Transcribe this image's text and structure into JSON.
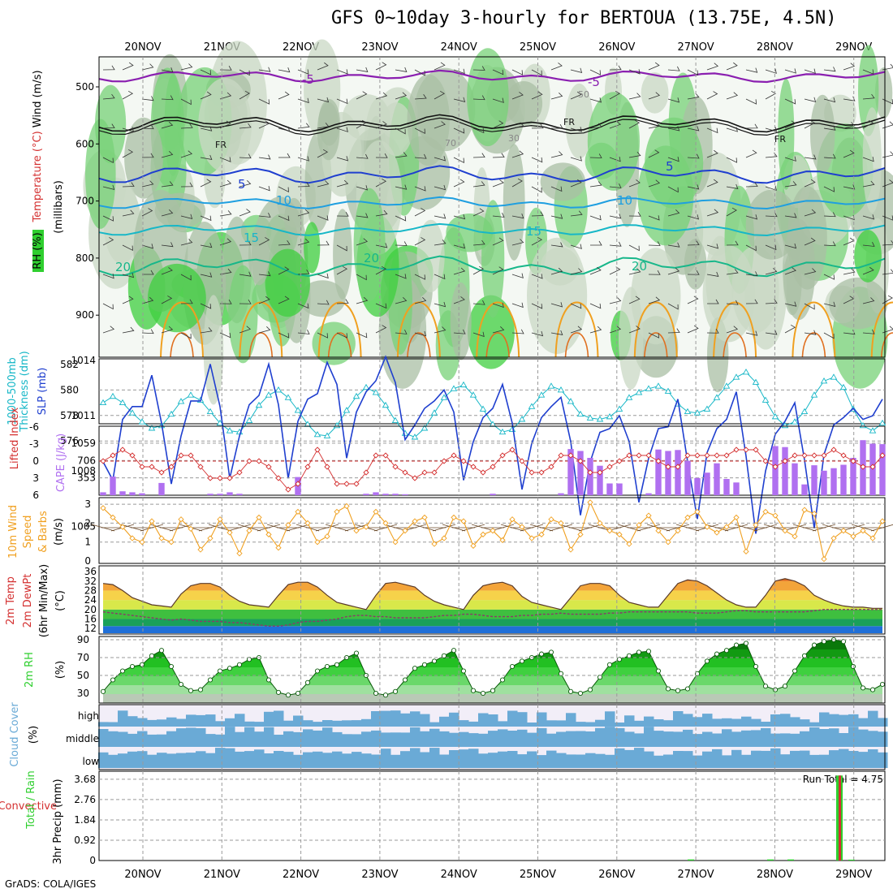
{
  "title": "GFS 0~10day 3-hourly for BERTOUA (13.75E, 4.5N)",
  "footer": "GrADS: COLA/IGES",
  "dates": [
    "20NOV",
    "21NOV",
    "22NOV",
    "23NOV",
    "24NOV",
    "25NOV",
    "26NOV",
    "27NOV",
    "28NOV",
    "29NOV"
  ],
  "colors": {
    "purple": "#8a1fb0",
    "blue": "#1f3fcf",
    "lightblue": "#1f9fe0",
    "cyan": "#17b7c7",
    "teal": "#17b78a",
    "orange": "#f0a020",
    "red": "#d43030",
    "cape": "#b070f0",
    "green": "#2fcf2f",
    "cloud": "#6aaad6"
  },
  "panels": {
    "upper": {
      "ylabel_parts": [
        "RH (%)",
        "Temperature (°C)",
        "Wind (m/s)"
      ],
      "ylabel_units": "(millibars)",
      "yticks": [
        500,
        600,
        700,
        800,
        900
      ],
      "annotations": [
        "-5",
        "-5",
        "5",
        "5",
        "10",
        "10",
        "15",
        "15",
        "20",
        "20",
        "20",
        "FR",
        "FR",
        "FR",
        "50",
        "30",
        "70"
      ]
    },
    "sfc": {
      "left_label": [
        "1000-500mb",
        "Thickness (dm)"
      ],
      "right_label": "SLP (mb)",
      "left_ticks": [
        "582",
        "580",
        "578",
        "576"
      ],
      "right_ticks": [
        "1014",
        "1011",
        "1008",
        "1005"
      ]
    },
    "li": {
      "left_label": "Lifted Index",
      "right_label": "CAPE (J/kg)",
      "left_ticks": [
        "-3",
        "0",
        "3",
        "6",
        "-6"
      ],
      "right_ticks": [
        "1059",
        "706",
        "353"
      ]
    },
    "wind": {
      "label": [
        "10m Wind",
        "Speed",
        "& Barbs",
        "(m/s)"
      ],
      "ticks": [
        "3",
        "2",
        "1",
        "0"
      ]
    },
    "temp": {
      "label": [
        "2m Temp",
        "2m DewPt",
        "(6hr Min/Max)",
        "(°C)"
      ],
      "ticks": [
        "36",
        "32",
        "28",
        "24",
        "20",
        "16",
        "12"
      ]
    },
    "rh": {
      "label": [
        "2m RH",
        "(%)"
      ],
      "ticks": [
        "90",
        "70",
        "50",
        "30"
      ]
    },
    "cloud": {
      "label": [
        "Cloud Cover",
        "(%)"
      ],
      "levels": [
        "high",
        "middle",
        "low"
      ]
    },
    "precip": {
      "label": [
        "Total / Rain",
        "Convective",
        "3hr Precip (mm)"
      ],
      "ticks": [
        "3.68",
        "2.76",
        "1.84",
        "0.92",
        "0"
      ],
      "run_total_label": "Run Total = 4.75"
    }
  },
  "chart_data": {
    "type": "meteogram",
    "steps_3hourly": 81,
    "thickness_dm": [
      579,
      579.5,
      579,
      578.2,
      577.5,
      577,
      577.2,
      578.1,
      579.1,
      579.6,
      579.2,
      578.3,
      577.4,
      576.8,
      576.7,
      577.6,
      578.8,
      579.6,
      580,
      579.4,
      578.4,
      577.3,
      576.5,
      576.4,
      577.2,
      578.4,
      579.5,
      580.2,
      579.8,
      578.8,
      577.6,
      576.6,
      576.3,
      577,
      578.2,
      579.4,
      580.1,
      580.4,
      579.6,
      578.5,
      577.3,
      576.7,
      576.9,
      577.7,
      578.7,
      579.6,
      580.3,
      580,
      579.1,
      578.1,
      577.8,
      577.7,
      577.9,
      578.5,
      579.4,
      579.8,
      580.1,
      580.3,
      579.9,
      578.9,
      578.3,
      578.2,
      578.5,
      579.4,
      580.3,
      581,
      581.4,
      580.6,
      579.2,
      577.9,
      577.2,
      577.5,
      578.3,
      579.6,
      580.7,
      581,
      580.2,
      578.5,
      577.2,
      576.8,
      577.4
    ],
    "slp_mb": [
      1008.5,
      1007.5,
      1010.8,
      1011.5,
      1011.5,
      1013.2,
      1010.6,
      1007.3,
      1009.9,
      1011.8,
      1011.8,
      1013.8,
      1011.5,
      1007.6,
      1009.9,
      1011.6,
      1012.1,
      1013.8,
      1011.6,
      1007.6,
      1010.7,
      1011.9,
      1012.2,
      1013.9,
      1012.7,
      1008.7,
      1011.2,
      1012.3,
      1012.9,
      1014.2,
      1012.8,
      1009.7,
      1010.5,
      1011.4,
      1011.8,
      1012.4,
      1011.2,
      1007.5,
      1009.6,
      1010.9,
      1011.4,
      1012.7,
      1010.6,
      1007.0,
      1009.5,
      1010.9,
      1011.5,
      1012.0,
      1009.6,
      1005.6,
      1008.5,
      1010.1,
      1010.3,
      1011.0,
      1009.6,
      1006.3,
      1008.7,
      1010.3,
      1010.4,
      1011.9,
      1008.5,
      1005.4,
      1009.0,
      1010.3,
      1010.8,
      1012.3,
      1008.8,
      1004.6,
      1008.0,
      1010.0,
      1010.7,
      1011.7,
      1008.6,
      1004.9,
      1008.9,
      1010.5,
      1010.9,
      1011.4,
      1010.8,
      1011.0,
      1011.9
    ],
    "lifted_index": [
      0,
      -1,
      -2,
      -1,
      1,
      1,
      2,
      1,
      -1,
      -1,
      1,
      3,
      3,
      3,
      2,
      0,
      0,
      1,
      3,
      5,
      4,
      1,
      -2,
      1,
      4,
      4,
      4,
      2,
      -1,
      -1,
      1,
      2,
      3,
      2,
      2,
      0,
      -1,
      0,
      1,
      2,
      1,
      -1,
      -2,
      0,
      2,
      2,
      1,
      -1,
      -1,
      0,
      2,
      2,
      1,
      0,
      -1,
      -1,
      -1,
      0,
      1,
      1,
      -1,
      -1,
      -1,
      -1,
      -1,
      -2,
      -2,
      -2,
      0,
      1,
      0,
      -1,
      -1,
      -1,
      -1,
      -2,
      -1,
      0,
      1,
      1,
      -1
    ],
    "cape_jkg": [
      60,
      380,
      80,
      60,
      40,
      0,
      250,
      0,
      0,
      0,
      0,
      30,
      30,
      60,
      30,
      0,
      0,
      0,
      0,
      0,
      370,
      0,
      0,
      0,
      0,
      0,
      0,
      30,
      60,
      30,
      30,
      20,
      0,
      0,
      0,
      0,
      0,
      0,
      0,
      0,
      30,
      0,
      0,
      0,
      0,
      0,
      0,
      40,
      940,
      900,
      760,
      600,
      240,
      240,
      0,
      0,
      40,
      930,
      900,
      920,
      700,
      350,
      460,
      650,
      330,
      260,
      0,
      0,
      0,
      1000,
      980,
      650,
      220,
      610,
      500,
      550,
      620,
      760,
      1120,
      1050,
      1040
    ],
    "wind_speed_ms": [
      2.8,
      2.3,
      1.8,
      1.2,
      1.0,
      2.1,
      1.2,
      1.0,
      2.2,
      1.7,
      0.6,
      1.2,
      2.2,
      1.5,
      0.4,
      1.6,
      2.3,
      1.4,
      0.7,
      1.9,
      2.6,
      2.0,
      1.0,
      1.3,
      2.6,
      2.9,
      1.6,
      1.8,
      2.6,
      2.0,
      1.0,
      1.6,
      2.1,
      2.3,
      0.9,
      1.2,
      2.3,
      2.1,
      0.8,
      1.4,
      1.6,
      1.1,
      2.2,
      1.8,
      1.2,
      1.4,
      2.2,
      2.0,
      0.6,
      1.4,
      3.1,
      2.0,
      1.6,
      1.4,
      0.9,
      1.9,
      2.4,
      1.6,
      1.0,
      1.6,
      2.3,
      2.6,
      1.8,
      1.5,
      1.8,
      2.3,
      0.5,
      1.9,
      2.6,
      2.4,
      1.6,
      1.3,
      2.7,
      2.5,
      0.1,
      1.2,
      1.6,
      1.3,
      1.6,
      1.2,
      2.1
    ],
    "temp_c": [
      31,
      30.5,
      28,
      25,
      23.5,
      22,
      21.5,
      21,
      26.5,
      30,
      31,
      31,
      29.5,
      26,
      23.5,
      22,
      21.5,
      21,
      26,
      30.5,
      31.5,
      31.5,
      29.5,
      26,
      23,
      22,
      21,
      20,
      26,
      31,
      31.5,
      30.5,
      29.5,
      26,
      23.5,
      22,
      21,
      20,
      26,
      30,
      31,
      31.5,
      30,
      25.5,
      23,
      22,
      21,
      20,
      25,
      30,
      31,
      31,
      30,
      26,
      23,
      22,
      21,
      21,
      26,
      31,
      32.5,
      32,
      30,
      27,
      24,
      22,
      21,
      21,
      26,
      32,
      33,
      32,
      30,
      26,
      24,
      22.5,
      21.5,
      21,
      21,
      20.5,
      20.5
    ],
    "dewpt_c": [
      19,
      18.5,
      18,
      17.5,
      17,
      16.5,
      16,
      15.5,
      16,
      15.5,
      15,
      15,
      15,
      14.5,
      14.5,
      14,
      13.5,
      13,
      13,
      13.5,
      14.5,
      15,
      15,
      15.5,
      16,
      17,
      17.5,
      17.5,
      17,
      17,
      16.5,
      16.5,
      16.5,
      16.5,
      17,
      17.5,
      17.5,
      18,
      18,
      17.5,
      17,
      17,
      17,
      17.5,
      17.5,
      18,
      18,
      18.5,
      18,
      18,
      18,
      18,
      18.5,
      18.5,
      19,
      19,
      19,
      19,
      19,
      19,
      19,
      18.5,
      18.5,
      18.5,
      19,
      19.5,
      19.5,
      19,
      19,
      19,
      19,
      19,
      19,
      19.5,
      20,
      20,
      20,
      20,
      20,
      20,
      20
    ],
    "rh_pct": [
      32,
      45,
      55,
      60,
      62,
      72,
      78,
      60,
      40,
      33,
      34,
      45,
      55,
      58,
      62,
      68,
      70,
      45,
      31,
      28,
      30,
      42,
      55,
      60,
      62,
      70,
      75,
      50,
      30,
      28,
      32,
      45,
      58,
      62,
      66,
      72,
      78,
      55,
      33,
      30,
      33,
      45,
      60,
      66,
      70,
      74,
      76,
      52,
      32,
      30,
      34,
      48,
      62,
      68,
      72,
      76,
      77,
      55,
      35,
      33,
      35,
      52,
      66,
      74,
      78,
      84,
      86,
      60,
      38,
      34,
      38,
      55,
      72,
      84,
      88,
      90,
      88,
      60,
      36,
      34,
      40
    ]
  }
}
